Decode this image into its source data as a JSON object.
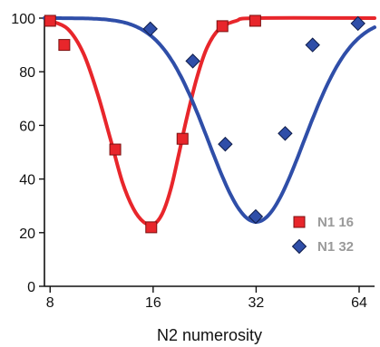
{
  "chart_data": {
    "type": "line",
    "title": "",
    "xlabel": "N2 numerosity",
    "ylabel": "",
    "x_ticks": [
      "8",
      "16",
      "32",
      "64"
    ],
    "y_ticks": [
      "0",
      "20",
      "40",
      "60",
      "80",
      "100"
    ],
    "xlim": [
      7.7,
      71
    ],
    "ylim": [
      0,
      100
    ],
    "x_scale": "log",
    "grid": false,
    "legend_position": "right",
    "series": [
      {
        "name": "N1 16",
        "color": "#e8262b",
        "marker": "square",
        "points": [
          {
            "x": 8,
            "y": 99
          },
          {
            "x": 8.8,
            "y": 90
          },
          {
            "x": 12.4,
            "y": 51
          },
          {
            "x": 15.8,
            "y": 22
          },
          {
            "x": 19.5,
            "y": 55
          },
          {
            "x": 25.5,
            "y": 97
          },
          {
            "x": 31.8,
            "y": 99
          }
        ],
        "curve": [
          {
            "x": 8,
            "y": 99
          },
          {
            "x": 9,
            "y": 96
          },
          {
            "x": 10,
            "y": 87
          },
          {
            "x": 11,
            "y": 72
          },
          {
            "x": 12,
            "y": 55
          },
          {
            "x": 13,
            "y": 39
          },
          {
            "x": 14,
            "y": 29
          },
          {
            "x": 15,
            "y": 24
          },
          {
            "x": 16,
            "y": 23
          },
          {
            "x": 17,
            "y": 27
          },
          {
            "x": 18,
            "y": 36
          },
          {
            "x": 19,
            "y": 49
          },
          {
            "x": 20,
            "y": 62
          },
          {
            "x": 21.5,
            "y": 78
          },
          {
            "x": 23,
            "y": 89
          },
          {
            "x": 25,
            "y": 96
          },
          {
            "x": 28,
            "y": 99
          },
          {
            "x": 32,
            "y": 100
          },
          {
            "x": 71,
            "y": 100
          }
        ]
      },
      {
        "name": "N1 32",
        "color": "#2f4ea8",
        "marker": "diamond",
        "points": [
          {
            "x": 15.7,
            "y": 96
          },
          {
            "x": 20.9,
            "y": 84
          },
          {
            "x": 26.0,
            "y": 53
          },
          {
            "x": 31.9,
            "y": 26
          },
          {
            "x": 38.9,
            "y": 57
          },
          {
            "x": 46.8,
            "y": 90
          },
          {
            "x": 63.5,
            "y": 98
          }
        ]
      }
    ]
  }
}
